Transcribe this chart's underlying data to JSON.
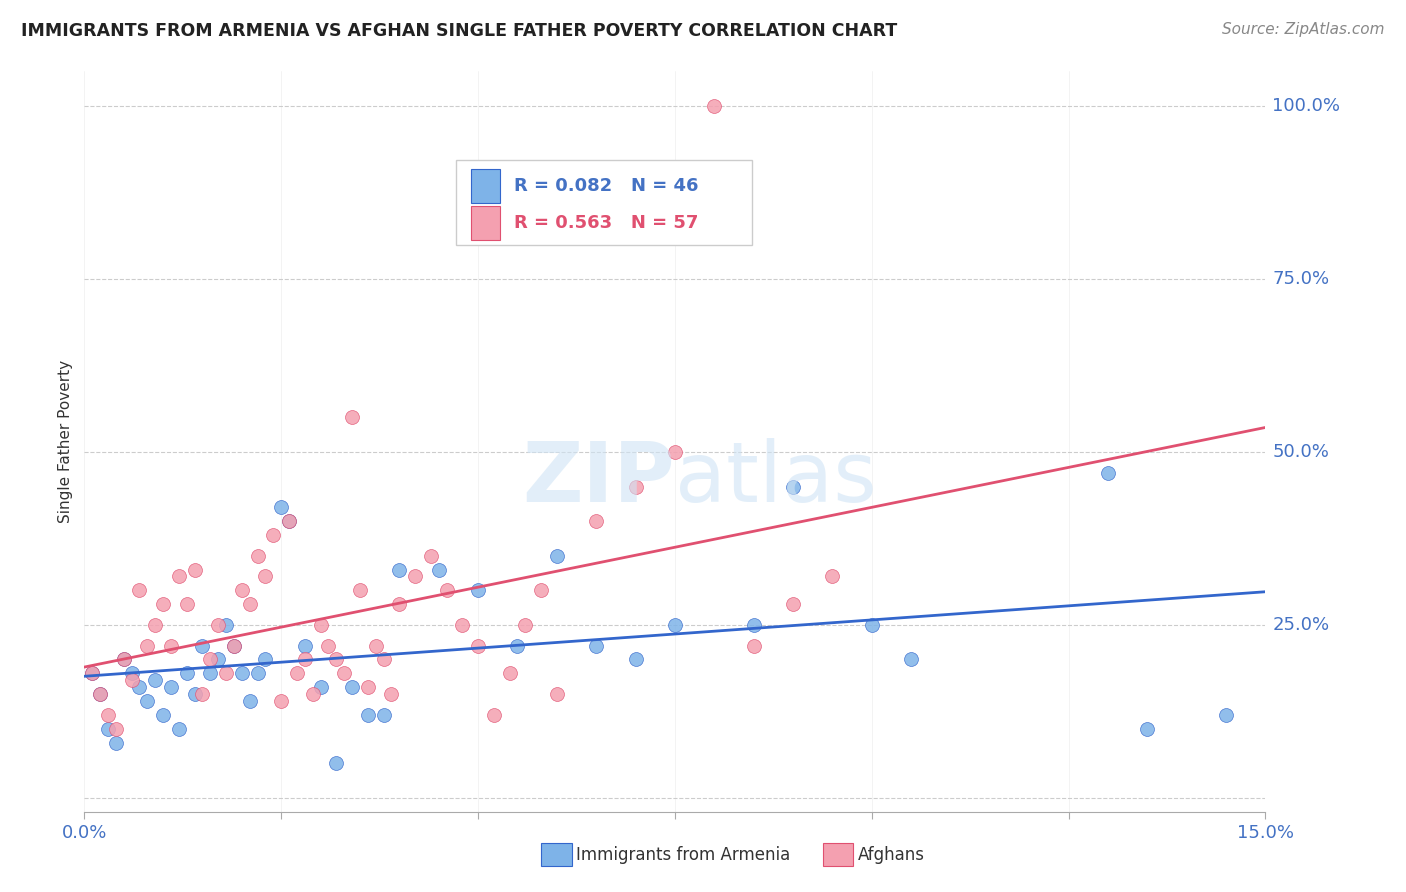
{
  "title": "IMMIGRANTS FROM ARMENIA VS AFGHAN SINGLE FATHER POVERTY CORRELATION CHART",
  "source": "Source: ZipAtlas.com",
  "ylabel": "Single Father Poverty",
  "xlim": [
    0,
    0.15
  ],
  "ylim": [
    -0.02,
    1.05
  ],
  "yticks": [
    0.0,
    0.25,
    0.5,
    0.75,
    1.0
  ],
  "ytick_labels": [
    "",
    "25.0%",
    "50.0%",
    "75.0%",
    "100.0%"
  ],
  "xticks": [
    0.0,
    0.025,
    0.05,
    0.075,
    0.1,
    0.125,
    0.15
  ],
  "xtick_labels": [
    "0.0%",
    "",
    "",
    "",
    "",
    "",
    "15.0%"
  ],
  "armenia_color": "#7EB3E8",
  "afghan_color": "#F4A0B0",
  "trend_armenia_color": "#3366CC",
  "trend_afghan_color": "#E05070",
  "legend_armenia_r": "R = 0.082",
  "legend_armenia_n": "N = 46",
  "legend_afghan_r": "R = 0.563",
  "legend_afghan_n": "N = 57",
  "armenia_x": [
    0.001,
    0.002,
    0.003,
    0.004,
    0.005,
    0.006,
    0.007,
    0.008,
    0.009,
    0.01,
    0.011,
    0.012,
    0.013,
    0.014,
    0.015,
    0.016,
    0.017,
    0.018,
    0.019,
    0.02,
    0.021,
    0.022,
    0.023,
    0.025,
    0.026,
    0.028,
    0.03,
    0.032,
    0.034,
    0.036,
    0.038,
    0.04,
    0.045,
    0.05,
    0.055,
    0.06,
    0.065,
    0.07,
    0.075,
    0.085,
    0.09,
    0.1,
    0.105,
    0.13,
    0.135,
    0.145
  ],
  "armenia_y": [
    0.18,
    0.15,
    0.1,
    0.08,
    0.2,
    0.18,
    0.16,
    0.14,
    0.17,
    0.12,
    0.16,
    0.1,
    0.18,
    0.15,
    0.22,
    0.18,
    0.2,
    0.25,
    0.22,
    0.18,
    0.14,
    0.18,
    0.2,
    0.42,
    0.4,
    0.22,
    0.16,
    0.05,
    0.16,
    0.12,
    0.12,
    0.33,
    0.33,
    0.3,
    0.22,
    0.35,
    0.22,
    0.2,
    0.25,
    0.25,
    0.45,
    0.25,
    0.2,
    0.47,
    0.1,
    0.12
  ],
  "afghan_x": [
    0.001,
    0.002,
    0.003,
    0.004,
    0.005,
    0.006,
    0.007,
    0.008,
    0.009,
    0.01,
    0.011,
    0.012,
    0.013,
    0.014,
    0.015,
    0.016,
    0.017,
    0.018,
    0.019,
    0.02,
    0.021,
    0.022,
    0.023,
    0.024,
    0.025,
    0.026,
    0.027,
    0.028,
    0.029,
    0.03,
    0.031,
    0.032,
    0.033,
    0.034,
    0.035,
    0.036,
    0.037,
    0.038,
    0.039,
    0.04,
    0.042,
    0.044,
    0.046,
    0.048,
    0.05,
    0.052,
    0.054,
    0.056,
    0.058,
    0.06,
    0.065,
    0.07,
    0.075,
    0.08,
    0.085,
    0.09,
    0.095
  ],
  "afghan_y": [
    0.18,
    0.15,
    0.12,
    0.1,
    0.2,
    0.17,
    0.3,
    0.22,
    0.25,
    0.28,
    0.22,
    0.32,
    0.28,
    0.33,
    0.15,
    0.2,
    0.25,
    0.18,
    0.22,
    0.3,
    0.28,
    0.35,
    0.32,
    0.38,
    0.14,
    0.4,
    0.18,
    0.2,
    0.15,
    0.25,
    0.22,
    0.2,
    0.18,
    0.55,
    0.3,
    0.16,
    0.22,
    0.2,
    0.15,
    0.28,
    0.32,
    0.35,
    0.3,
    0.25,
    0.22,
    0.12,
    0.18,
    0.25,
    0.3,
    0.15,
    0.4,
    0.45,
    0.5,
    1.0,
    0.22,
    0.28,
    0.32
  ]
}
